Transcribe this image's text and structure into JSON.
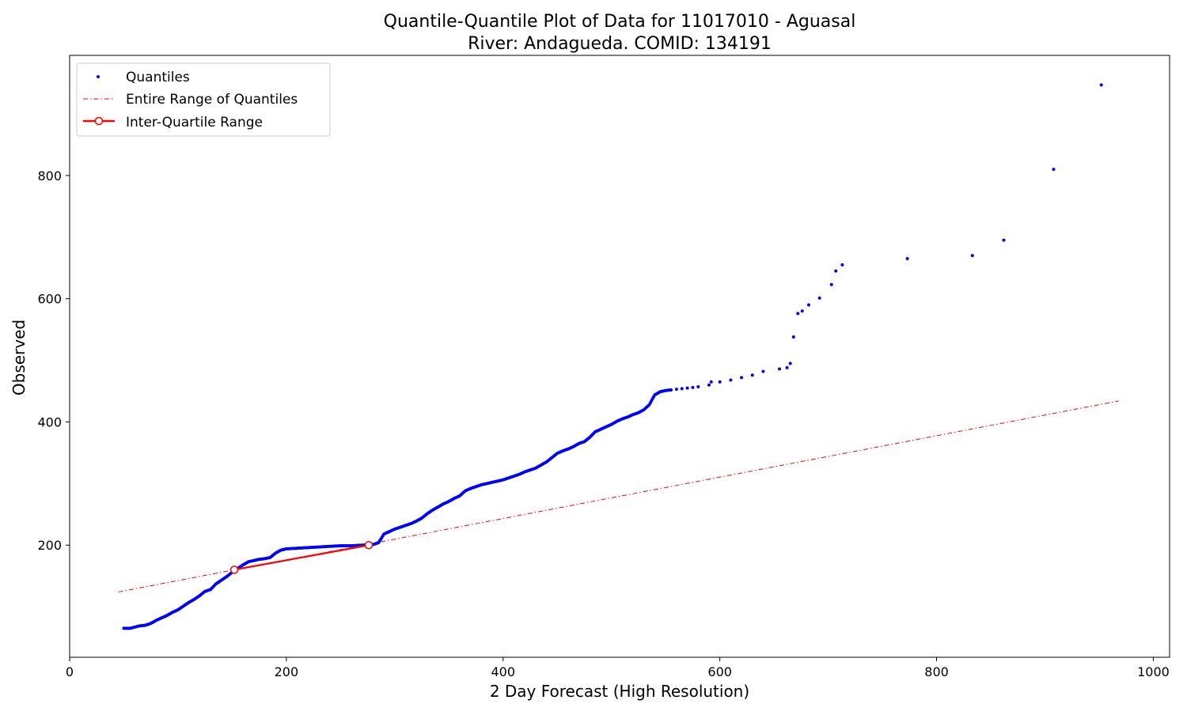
{
  "chart_data": {
    "type": "scatter",
    "title_line1": "Quantile-Quantile Plot of Data for 11017010 - Aguasal",
    "title_line2": "River: Andagueda. COMID: 134191",
    "xlabel": "2 Day Forecast (High Resolution)",
    "ylabel": "Observed",
    "xlim": [
      0,
      1015
    ],
    "ylim": [
      18,
      995
    ],
    "xticks": [
      0,
      200,
      400,
      600,
      800,
      1000
    ],
    "yticks": [
      200,
      400,
      600,
      800
    ],
    "xtick_labels": [
      "0",
      "200",
      "400",
      "600",
      "800",
      "1000"
    ],
    "ytick_labels": [
      "200",
      "400",
      "600",
      "800"
    ],
    "legend_position": "upper-left",
    "legend": {
      "quantiles": "Quantiles",
      "entire_range": "Entire Range of Quantiles",
      "iqr": "Inter-Quartile Range"
    },
    "colors": {
      "quantiles": "#0000ff",
      "entire_range": "#ff0000",
      "iqr": "#ff0000"
    },
    "series": [
      {
        "name": "Quantiles",
        "style": "points",
        "points": [
          [
            50,
            65
          ],
          [
            56,
            65
          ],
          [
            60,
            67
          ],
          [
            65,
            69
          ],
          [
            70,
            70
          ],
          [
            75,
            73
          ],
          [
            80,
            78
          ],
          [
            85,
            82
          ],
          [
            90,
            86
          ],
          [
            95,
            91
          ],
          [
            100,
            95
          ],
          [
            105,
            101
          ],
          [
            110,
            107
          ],
          [
            115,
            112
          ],
          [
            120,
            118
          ],
          [
            125,
            125
          ],
          [
            130,
            128
          ],
          [
            135,
            137
          ],
          [
            140,
            143
          ],
          [
            145,
            149
          ],
          [
            150,
            156
          ],
          [
            155,
            162
          ],
          [
            160,
            168
          ],
          [
            165,
            173
          ],
          [
            170,
            175
          ],
          [
            175,
            177
          ],
          [
            180,
            178
          ],
          [
            185,
            180
          ],
          [
            190,
            187
          ],
          [
            195,
            192
          ],
          [
            200,
            194
          ],
          [
            210,
            195
          ],
          [
            220,
            196
          ],
          [
            230,
            197
          ],
          [
            240,
            198
          ],
          [
            250,
            199
          ],
          [
            260,
            199
          ],
          [
            270,
            200
          ],
          [
            280,
            201
          ],
          [
            285,
            204
          ],
          [
            288,
            212
          ],
          [
            290,
            218
          ],
          [
            295,
            222
          ],
          [
            300,
            226
          ],
          [
            305,
            229
          ],
          [
            310,
            232
          ],
          [
            315,
            235
          ],
          [
            320,
            239
          ],
          [
            325,
            244
          ],
          [
            330,
            251
          ],
          [
            335,
            257
          ],
          [
            340,
            262
          ],
          [
            345,
            267
          ],
          [
            350,
            271
          ],
          [
            355,
            276
          ],
          [
            360,
            280
          ],
          [
            365,
            288
          ],
          [
            370,
            292
          ],
          [
            375,
            295
          ],
          [
            380,
            298
          ],
          [
            385,
            300
          ],
          [
            390,
            302
          ],
          [
            395,
            304
          ],
          [
            400,
            306
          ],
          [
            405,
            309
          ],
          [
            410,
            312
          ],
          [
            415,
            315
          ],
          [
            420,
            319
          ],
          [
            425,
            322
          ],
          [
            430,
            325
          ],
          [
            435,
            330
          ],
          [
            440,
            335
          ],
          [
            445,
            342
          ],
          [
            450,
            349
          ],
          [
            455,
            353
          ],
          [
            460,
            356
          ],
          [
            465,
            360
          ],
          [
            470,
            365
          ],
          [
            475,
            368
          ],
          [
            480,
            375
          ],
          [
            485,
            384
          ],
          [
            490,
            388
          ],
          [
            495,
            392
          ],
          [
            500,
            396
          ],
          [
            505,
            401
          ],
          [
            510,
            405
          ],
          [
            515,
            408
          ],
          [
            520,
            412
          ],
          [
            525,
            415
          ],
          [
            530,
            420
          ],
          [
            535,
            428
          ],
          [
            538,
            438
          ],
          [
            540,
            444
          ],
          [
            545,
            449
          ],
          [
            550,
            451
          ],
          [
            555,
            452
          ],
          [
            560,
            453
          ],
          [
            565,
            454
          ],
          [
            570,
            455
          ],
          [
            575,
            456
          ],
          [
            580,
            457
          ],
          [
            590,
            460
          ],
          [
            592,
            465
          ],
          [
            600,
            465
          ],
          [
            610,
            468
          ],
          [
            620,
            472
          ],
          [
            630,
            476
          ],
          [
            640,
            482
          ],
          [
            655,
            486
          ],
          [
            662,
            488
          ],
          [
            665,
            495
          ],
          [
            668,
            538
          ],
          [
            672,
            576
          ],
          [
            676,
            580
          ],
          [
            682,
            590
          ],
          [
            692,
            601
          ],
          [
            703,
            623
          ],
          [
            707,
            645
          ],
          [
            713,
            655
          ],
          [
            773,
            665
          ],
          [
            833,
            670
          ],
          [
            862,
            695
          ],
          [
            908,
            810
          ],
          [
            952,
            947
          ]
        ]
      },
      {
        "name": "Entire Range of Quantiles",
        "style": "dashdot",
        "points": [
          [
            45,
            124
          ],
          [
            968,
            434
          ]
        ]
      },
      {
        "name": "Inter-Quartile Range",
        "style": "solid-markers",
        "points": [
          [
            152,
            160
          ],
          [
            276,
            200
          ]
        ]
      }
    ]
  }
}
